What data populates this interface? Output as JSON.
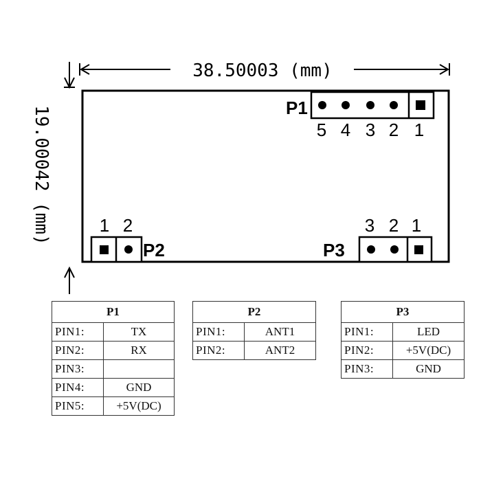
{
  "dimensions": {
    "width_label": "38.50003 (mm)",
    "height_label": "19.00042 (mm)"
  },
  "board": {
    "p1": {
      "name": "P1",
      "pin_numbers": [
        "5",
        "4",
        "3",
        "2",
        "1"
      ]
    },
    "p2": {
      "name": "P2",
      "pin_numbers": [
        "1",
        "2"
      ]
    },
    "p3": {
      "name": "P3",
      "pin_numbers": [
        "3",
        "2",
        "1"
      ]
    }
  },
  "tables": {
    "p1": {
      "title": "P1",
      "rows": [
        {
          "pin": "PIN1:",
          "value": "TX"
        },
        {
          "pin": "PIN2:",
          "value": "RX"
        },
        {
          "pin": "PIN3:",
          "value": ""
        },
        {
          "pin": "PIN4:",
          "value": "GND"
        },
        {
          "pin": "PIN5:",
          "value": "+5V(DC)"
        }
      ]
    },
    "p2": {
      "title": "P2",
      "rows": [
        {
          "pin": "PIN1:",
          "value": "ANT1"
        },
        {
          "pin": "PIN2:",
          "value": "ANT2"
        }
      ]
    },
    "p3": {
      "title": "P3",
      "rows": [
        {
          "pin": "PIN1:",
          "value": "LED"
        },
        {
          "pin": "PIN2:",
          "value": "+5V(DC)"
        },
        {
          "pin": "PIN3:",
          "value": "GND"
        }
      ]
    }
  }
}
